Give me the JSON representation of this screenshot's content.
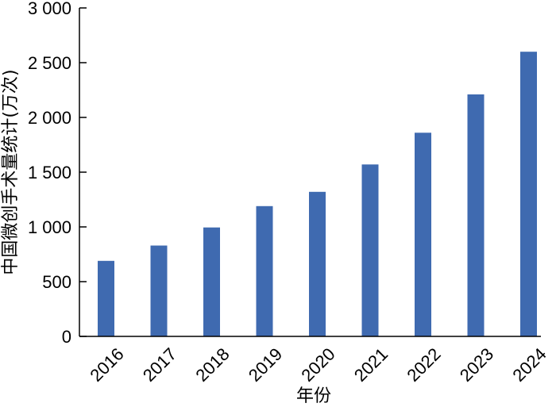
{
  "chart_data": {
    "type": "bar",
    "title": "",
    "xlabel": "年份",
    "ylabel": "中国微创手术量统计(万次)",
    "categories": [
      "2016",
      "2017",
      "2018",
      "2019",
      "2020",
      "2021",
      "2022",
      "2023",
      "2024"
    ],
    "values": [
      690,
      830,
      995,
      1190,
      1320,
      1570,
      1860,
      2210,
      2600
    ],
    "ylim": [
      0,
      3000
    ],
    "yticks": [
      0,
      500,
      1000,
      1500,
      2000,
      2500,
      3000
    ],
    "ytick_labels": [
      "0",
      "500",
      "1 000",
      "1 500",
      "2 000",
      "2 500",
      "3 000"
    ],
    "bar_color": "#3f6ab0",
    "grid": false,
    "legend": "none"
  }
}
